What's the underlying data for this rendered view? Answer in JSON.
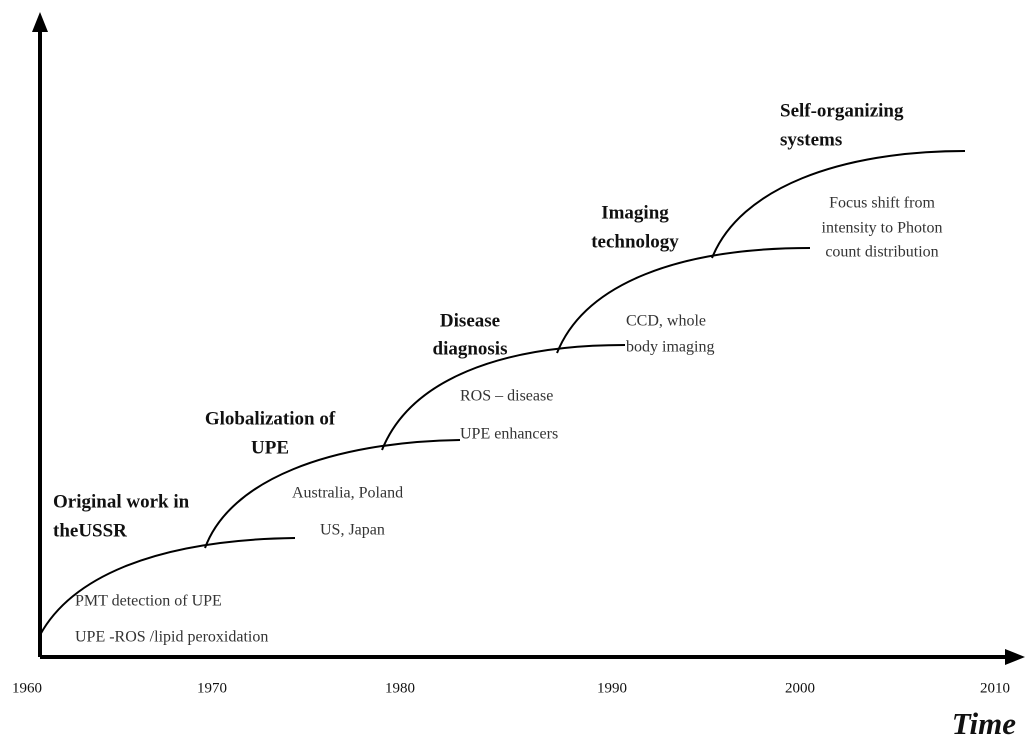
{
  "axis": {
    "label": "Time",
    "years": [
      1960,
      1970,
      1980,
      1990,
      2000,
      2010
    ]
  },
  "stages": [
    {
      "title": [
        "Original work in",
        "theUSSR"
      ],
      "notes": [
        "PMT detection of UPE",
        "UPE -ROS /lipid peroxidation"
      ]
    },
    {
      "title": [
        "Globalization of",
        "UPE"
      ],
      "notes": [
        "Australia, Poland",
        "US, Japan"
      ]
    },
    {
      "title": [
        "Disease",
        "diagnosis"
      ],
      "notes": [
        "ROS – disease",
        "UPE enhancers"
      ]
    },
    {
      "title": [
        "Imaging",
        "technology"
      ],
      "notes": [
        "CCD, whole",
        "body imaging"
      ]
    },
    {
      "title": [
        "Self-organizing",
        "systems"
      ],
      "notes": [
        "Focus shift from",
        "intensity to Photon",
        "count distribution"
      ]
    }
  ]
}
